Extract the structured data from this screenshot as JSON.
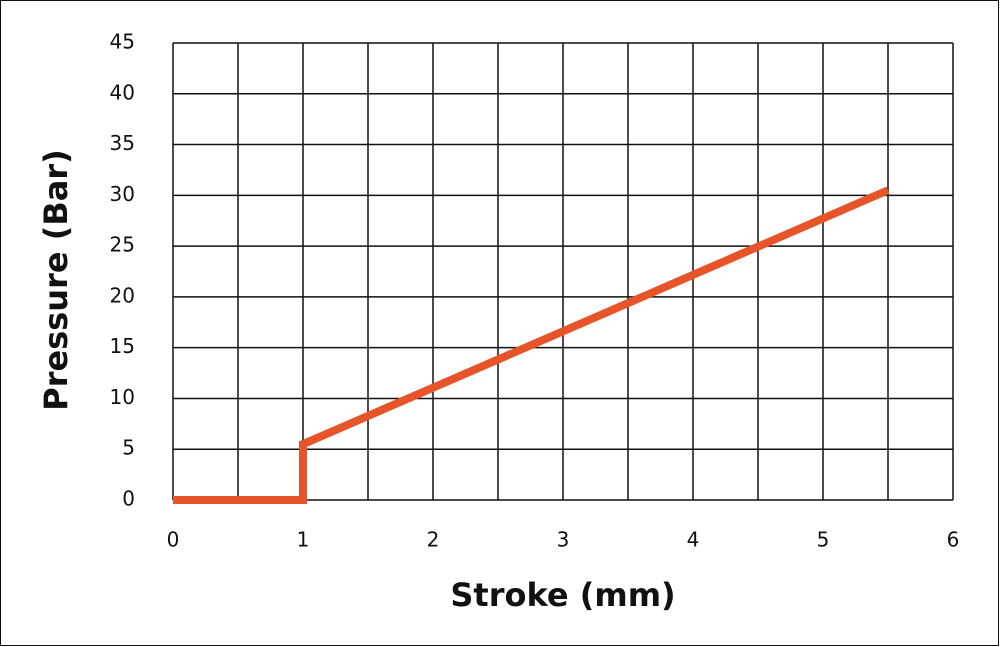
{
  "chart_data": {
    "type": "line",
    "x_label": "Stroke (mm)",
    "y_label": "Pressure (Bar)",
    "xlim": [
      0,
      6
    ],
    "xticks": [
      0,
      1,
      2,
      3,
      4,
      5,
      6
    ],
    "x_minor_ticks": [
      0.5,
      1.5,
      2.5,
      3.5,
      4.5,
      5.5
    ],
    "ylim": [
      0,
      45
    ],
    "yticks": [
      0,
      5,
      10,
      15,
      20,
      25,
      30,
      35,
      40,
      45
    ],
    "grid": true,
    "series": [
      {
        "color": "#e8542a",
        "x": [
          0,
          1,
          1,
          5.5
        ],
        "values": [
          0,
          0,
          5.5,
          30.5
        ]
      }
    ]
  }
}
